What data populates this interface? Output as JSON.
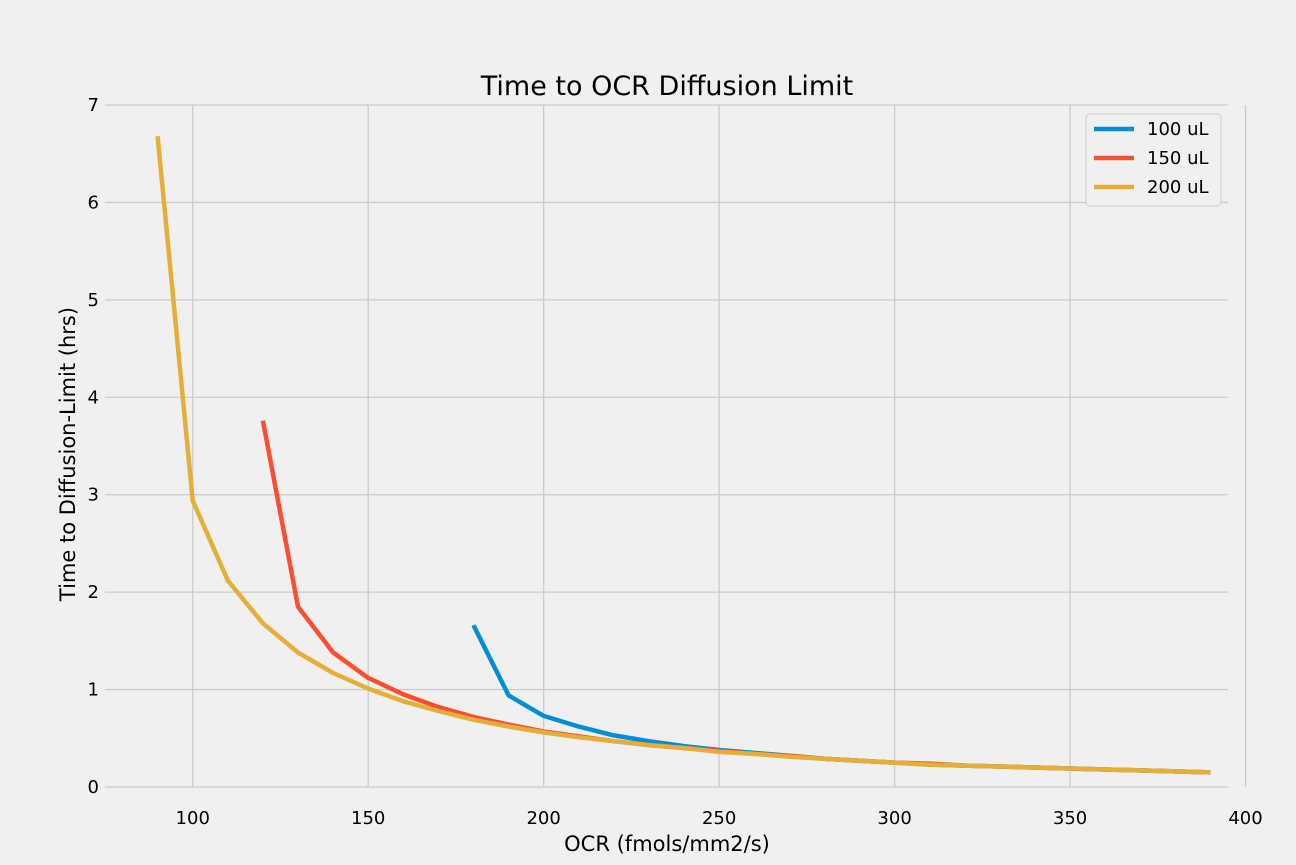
{
  "chart_data": {
    "type": "line",
    "title": "Time to OCR Diffusion Limit",
    "xlabel": "OCR (fmols/mm2/s)",
    "ylabel": "Time to Diffusion-Limit (hrs)",
    "xlim": [
      75,
      395
    ],
    "ylim": [
      0,
      7
    ],
    "xticks": [
      100,
      150,
      200,
      250,
      300,
      350,
      400
    ],
    "yticks": [
      0,
      1,
      2,
      3,
      4,
      5,
      6,
      7
    ],
    "grid": true,
    "legend_position": "top-right",
    "series": [
      {
        "name": "100 uL",
        "color": "#008fd5",
        "x": [
          180,
          190,
          200,
          210,
          220,
          230,
          240,
          250,
          260,
          270,
          280,
          290,
          300,
          310,
          320,
          330,
          340,
          350,
          360,
          370,
          380,
          390
        ],
        "y": [
          1.66,
          0.94,
          0.73,
          0.62,
          0.53,
          0.47,
          0.42,
          0.38,
          0.35,
          0.32,
          0.29,
          0.27,
          0.25,
          0.23,
          0.22,
          0.21,
          0.2,
          0.19,
          0.18,
          0.17,
          0.16,
          0.15
        ]
      },
      {
        "name": "150 uL",
        "color": "#fc4f30",
        "x": [
          120,
          130,
          140,
          150,
          160,
          170,
          180,
          190,
          200,
          210,
          220,
          230,
          240,
          250,
          260,
          270,
          280,
          290,
          300,
          310,
          320,
          330,
          340,
          350,
          360,
          370,
          380,
          390
        ],
        "y": [
          3.76,
          1.85,
          1.38,
          1.12,
          0.95,
          0.82,
          0.72,
          0.64,
          0.57,
          0.52,
          0.47,
          0.43,
          0.4,
          0.37,
          0.34,
          0.32,
          0.29,
          0.27,
          0.25,
          0.24,
          0.22,
          0.21,
          0.2,
          0.19,
          0.18,
          0.17,
          0.16,
          0.15
        ]
      },
      {
        "name": "200 uL",
        "color": "#e5ae38",
        "x": [
          90,
          100,
          110,
          120,
          130,
          140,
          150,
          160,
          170,
          180,
          190,
          200,
          210,
          220,
          230,
          240,
          250,
          260,
          270,
          280,
          290,
          300,
          310,
          320,
          330,
          340,
          350,
          360,
          370,
          380,
          390
        ],
        "y": [
          6.68,
          2.94,
          2.12,
          1.68,
          1.38,
          1.17,
          1.01,
          0.88,
          0.78,
          0.69,
          0.62,
          0.56,
          0.51,
          0.47,
          0.43,
          0.4,
          0.36,
          0.34,
          0.31,
          0.29,
          0.27,
          0.25,
          0.23,
          0.22,
          0.21,
          0.2,
          0.19,
          0.18,
          0.17,
          0.16,
          0.15
        ]
      }
    ]
  }
}
